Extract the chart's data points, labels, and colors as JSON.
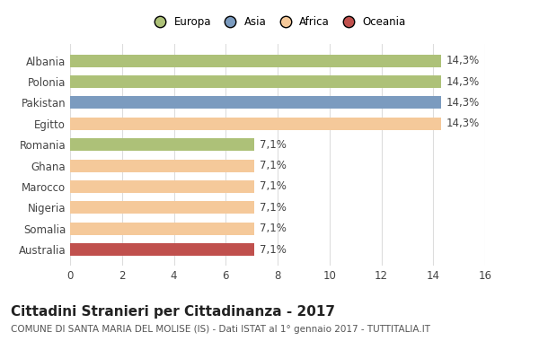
{
  "categories": [
    "Albania",
    "Polonia",
    "Pakistan",
    "Egitto",
    "Romania",
    "Ghana",
    "Marocco",
    "Nigeria",
    "Somalia",
    "Australia"
  ],
  "values": [
    14.3,
    14.3,
    14.3,
    14.3,
    7.1,
    7.1,
    7.1,
    7.1,
    7.1,
    7.1
  ],
  "labels": [
    "14,3%",
    "14,3%",
    "14,3%",
    "14,3%",
    "7,1%",
    "7,1%",
    "7,1%",
    "7,1%",
    "7,1%",
    "7,1%"
  ],
  "colors": [
    "#adc178",
    "#adc178",
    "#7b9bbf",
    "#f5c99a",
    "#adc178",
    "#f5c99a",
    "#f5c99a",
    "#f5c99a",
    "#f5c99a",
    "#c0504d"
  ],
  "continent_colors": {
    "Europa": "#adc178",
    "Asia": "#7b9bbf",
    "Africa": "#f5c99a",
    "Oceania": "#c0504d"
  },
  "legend_labels": [
    "Europa",
    "Asia",
    "Africa",
    "Oceania"
  ],
  "xlim": [
    0,
    16
  ],
  "xticks": [
    0,
    2,
    4,
    6,
    8,
    10,
    12,
    14,
    16
  ],
  "title": "Cittadini Stranieri per Cittadinanza - 2017",
  "subtitle": "COMUNE DI SANTA MARIA DEL MOLISE (IS) - Dati ISTAT al 1° gennaio 2017 - TUTTITALIA.IT",
  "background_color": "#ffffff",
  "grid_color": "#dddddd",
  "bar_height": 0.6,
  "label_fontsize": 8.5,
  "tick_fontsize": 8.5,
  "title_fontsize": 11,
  "subtitle_fontsize": 7.5
}
